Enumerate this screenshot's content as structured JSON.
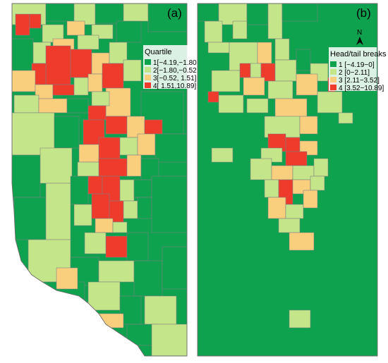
{
  "colors": {
    "class1": "#0fa24e",
    "class2": "#c4e58a",
    "class3": "#f9cf7e",
    "class4": "#ef3b2c",
    "boundary": "#7f7f7f"
  },
  "panels": [
    {
      "label": "(a)",
      "legend": {
        "title": "Quartile",
        "items": [
          {
            "label": "1[−4.19,−1.80",
            "color": "#0fa24e"
          },
          {
            "label": "2[−1.80,−0.52",
            "color": "#c4e58a"
          },
          {
            "label": "3[−0.52, 1.51]",
            "color": "#f9cf7e"
          },
          {
            "label": "4[ 1.51,10.89]",
            "color": "#ef3b2c"
          }
        ]
      }
    },
    {
      "label": "(b)",
      "north": "N",
      "legend": {
        "title": "Head/tail breaks",
        "items": [
          {
            "label": "1 [−4.19−0]",
            "color": "#0fa24e"
          },
          {
            "label": "2 [0−2.11]",
            "color": "#c4e58a"
          },
          {
            "label": "3 [2.11−3.52]",
            "color": "#f9cf7e"
          },
          {
            "label": "4 [3.52−10.89]",
            "color": "#ef3b2c"
          }
        ]
      }
    }
  ]
}
